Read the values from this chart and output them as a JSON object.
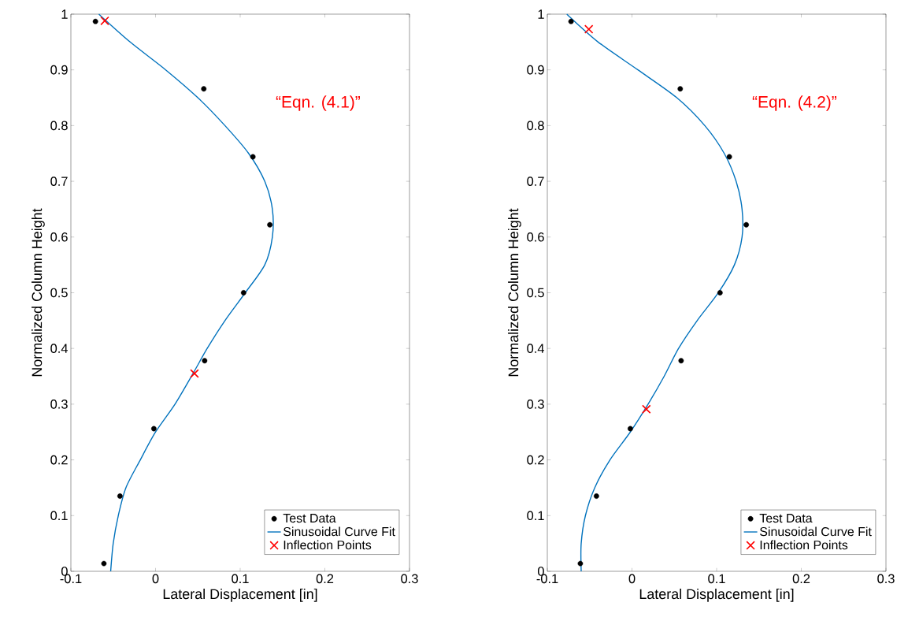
{
  "chart_data": [
    {
      "type": "scatter",
      "xlabel": "Lateral Displacement [in]",
      "ylabel": "Normalized Column Height",
      "xlim": [
        -0.1,
        0.3
      ],
      "ylim": [
        0,
        1
      ],
      "xticks": [
        -0.1,
        0,
        0.1,
        0.2,
        0.3
      ],
      "yticks": [
        0,
        0.1,
        0.2,
        0.3,
        0.4,
        0.5,
        0.6,
        0.7,
        0.8,
        0.9,
        1
      ],
      "grid": false,
      "legend": "bottom right",
      "annotations": [
        "“Eqn. (4.1)”"
      ],
      "series": [
        {
          "name": "Test Data",
          "marker": "circle",
          "color": "#000000",
          "x": [
            -0.071,
            0.057,
            0.115,
            0.135,
            0.104,
            0.058,
            -0.002,
            -0.042,
            -0.061
          ],
          "values": [
            0.987,
            0.866,
            0.744,
            0.622,
            0.5,
            0.378,
            0.256,
            0.135,
            0.014
          ]
        },
        {
          "name": "Sinusoidal Curve Fit",
          "type": "line",
          "marker": "none",
          "line_style": "solid",
          "color": "#0072bd",
          "x": [
            -0.053,
            -0.05,
            -0.044,
            -0.035,
            -0.018,
            0,
            0.023,
            0.045,
            0.061,
            0.082,
            0.106,
            0.129,
            0.138,
            0.138,
            0.129,
            0.11,
            0.082,
            0.05,
            0.012,
            -0.03,
            -0.067
          ],
          "values": [
            0,
            0.05,
            0.1,
            0.15,
            0.2,
            0.25,
            0.3,
            0.357,
            0.4,
            0.45,
            0.5,
            0.55,
            0.6,
            0.65,
            0.7,
            0.75,
            0.8,
            0.85,
            0.9,
            0.95,
            1.0
          ]
        },
        {
          "name": "Inflection Points",
          "marker": "cross",
          "color": "#ff0000",
          "x": [
            -0.06,
            0.046
          ],
          "values": [
            0.988,
            0.355
          ]
        }
      ]
    },
    {
      "type": "scatter",
      "xlabel": "Lateral Displacement [in]",
      "ylabel": "Normalized Column Height",
      "xlim": [
        -0.1,
        0.3
      ],
      "ylim": [
        0,
        1
      ],
      "xticks": [
        -0.1,
        0,
        0.1,
        0.2,
        0.3
      ],
      "yticks": [
        0,
        0.1,
        0.2,
        0.3,
        0.4,
        0.5,
        0.6,
        0.7,
        0.8,
        0.9,
        1
      ],
      "grid": false,
      "legend": "bottom right",
      "annotations": [
        "“Eqn. (4.2)”"
      ],
      "series": [
        {
          "name": "Test Data",
          "marker": "circle",
          "color": "#000000",
          "x": [
            -0.072,
            0.057,
            0.115,
            0.135,
            0.104,
            0.058,
            -0.002,
            -0.042,
            -0.061
          ],
          "values": [
            0.987,
            0.866,
            0.744,
            0.622,
            0.5,
            0.378,
            0.256,
            0.135,
            0.014
          ]
        },
        {
          "name": "Sinusoidal Curve Fit",
          "type": "line",
          "marker": "none",
          "line_style": "solid",
          "color": "#0072bd",
          "x": [
            -0.06,
            -0.06,
            -0.055,
            -0.044,
            -0.026,
            -0.002,
            0.019,
            0.038,
            0.055,
            0.077,
            0.102,
            0.121,
            0.13,
            0.13,
            0.123,
            0.109,
            0.086,
            0.053,
            0.007,
            -0.04,
            -0.077
          ],
          "values": [
            0,
            0.05,
            0.1,
            0.15,
            0.2,
            0.25,
            0.3,
            0.35,
            0.4,
            0.45,
            0.5,
            0.55,
            0.6,
            0.65,
            0.7,
            0.75,
            0.8,
            0.85,
            0.9,
            0.95,
            1.0
          ]
        },
        {
          "name": "Inflection Points",
          "marker": "cross",
          "color": "#ff0000",
          "x": [
            -0.051,
            0.017
          ],
          "values": [
            0.973,
            0.291
          ]
        }
      ]
    }
  ]
}
